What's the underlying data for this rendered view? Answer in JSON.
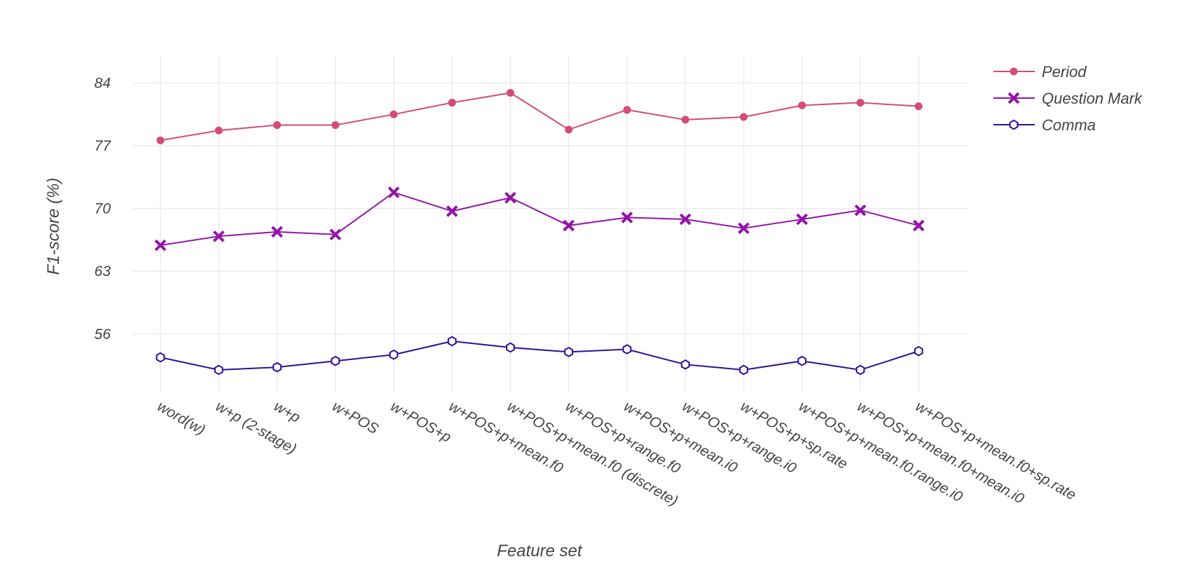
{
  "chart_data": {
    "type": "line",
    "xlabel": "Feature set",
    "ylabel": "F1-score (%)",
    "ylim": [
      49.5,
      87
    ],
    "yticks": [
      56,
      63,
      70,
      77,
      84
    ],
    "grid": true,
    "legend_position": "top-right",
    "categories": [
      "word(w)",
      "w+p (2-stage)",
      "w+p",
      "w+POS",
      "w+POS+p",
      "w+POS+p+mean.f0",
      "w+POS+p+mean.f0 (discrete)",
      "w+POS+p+range.f0",
      "w+POS+p+mean.i0",
      "w+POS+p+range.i0",
      "w+POS+p+sp.rate",
      "w+POS+p+mean.f0.range.i0",
      "w+POS+p+mean.f0+mean.i0",
      "w+POS+p+mean.f0+sp.rate"
    ],
    "series": [
      {
        "name": "Period",
        "color": "#d44a78",
        "marker": "circle",
        "values": [
          77.6,
          78.7,
          79.3,
          79.3,
          80.5,
          81.8,
          82.9,
          78.8,
          81.0,
          79.9,
          80.2,
          81.5,
          81.8,
          81.4
        ]
      },
      {
        "name": "Question Mark",
        "color": "#9315a8",
        "marker": "x",
        "values": [
          65.9,
          66.9,
          67.4,
          67.1,
          71.8,
          69.7,
          71.2,
          68.1,
          69.0,
          68.8,
          67.8,
          68.8,
          69.8,
          68.1
        ]
      },
      {
        "name": "Comma",
        "color": "#2e0f96",
        "marker": "hexagon-open",
        "values": [
          53.4,
          52.0,
          52.3,
          53.0,
          53.7,
          55.2,
          54.5,
          54.0,
          54.3,
          52.6,
          52.0,
          53.0,
          52.0,
          54.1
        ]
      }
    ]
  }
}
